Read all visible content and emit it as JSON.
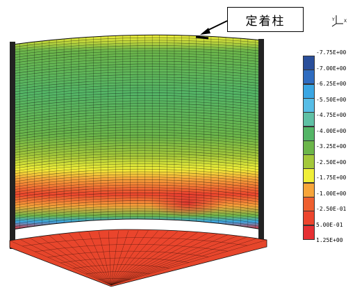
{
  "callout": {
    "label": "定着柱"
  },
  "axes_icon": {
    "y_label": "Y",
    "x_label": "X"
  },
  "legend": {
    "items": [
      {
        "label": "-7.75E+00",
        "color": "#2a4f9a"
      },
      {
        "label": "-7.00E+00",
        "color": "#2f6cc0"
      },
      {
        "label": "-6.25E+00",
        "color": "#3aa6e3"
      },
      {
        "label": "-5.50E+00",
        "color": "#57bde6"
      },
      {
        "label": "-4.75E+00",
        "color": "#5fc0a4"
      },
      {
        "label": "-4.00E+00",
        "color": "#54b566"
      },
      {
        "label": "-3.25E+00",
        "color": "#6cb64a"
      },
      {
        "label": "-2.50E+00",
        "color": "#a4c83a"
      },
      {
        "label": "-1.75E+00",
        "color": "#f0ef38"
      },
      {
        "label": "-1.00E+00",
        "color": "#f7a53a"
      },
      {
        "label": "-2.50E-01",
        "color": "#ee5f2f"
      },
      {
        "label": "5.00E-01",
        "color": "#ec452d"
      },
      {
        "label": "1.25E+00",
        "color": "#e63033"
      }
    ]
  }
}
